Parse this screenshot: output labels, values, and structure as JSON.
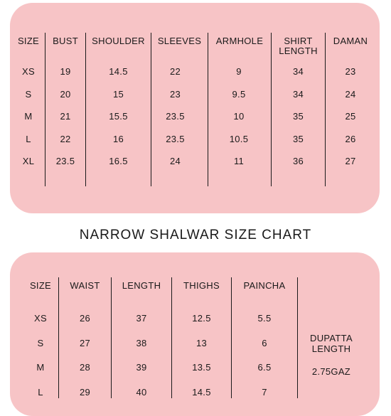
{
  "shirt_chart": {
    "headers": [
      "SIZE",
      "BUST",
      "SHOULDER",
      "SLEEVES",
      "ARMHOLE",
      "SHIRT\nLENGTH",
      "DAMAN"
    ],
    "rows": [
      [
        "XS",
        "19",
        "14.5",
        "22",
        "9",
        "34",
        "23"
      ],
      [
        "S",
        "20",
        "15",
        "23",
        "9.5",
        "34",
        "24"
      ],
      [
        "M",
        "21",
        "15.5",
        "23.5",
        "10",
        "35",
        "25"
      ],
      [
        "L",
        "22",
        "16",
        "23.5",
        "10.5",
        "35",
        "26"
      ],
      [
        "XL",
        "23.5",
        "16.5",
        "24",
        "11",
        "36",
        "27"
      ]
    ]
  },
  "shalwar_chart": {
    "title": "NARROW SHALWAR SIZE CHART",
    "headers": [
      "SIZE",
      "WAIST",
      "LENGTH",
      "THIGHS",
      "PAINCHA"
    ],
    "rows": [
      [
        "XS",
        "26",
        "37",
        "12.5",
        "5.5"
      ],
      [
        "S",
        "27",
        "38",
        "13",
        "6"
      ],
      [
        "M",
        "28",
        "39",
        "13.5",
        "6.5"
      ],
      [
        "L",
        "29",
        "40",
        "14.5",
        "7"
      ]
    ],
    "dupatta_label": "DUPATTA\nLENGTH",
    "dupatta_value": "2.75GAZ"
  }
}
